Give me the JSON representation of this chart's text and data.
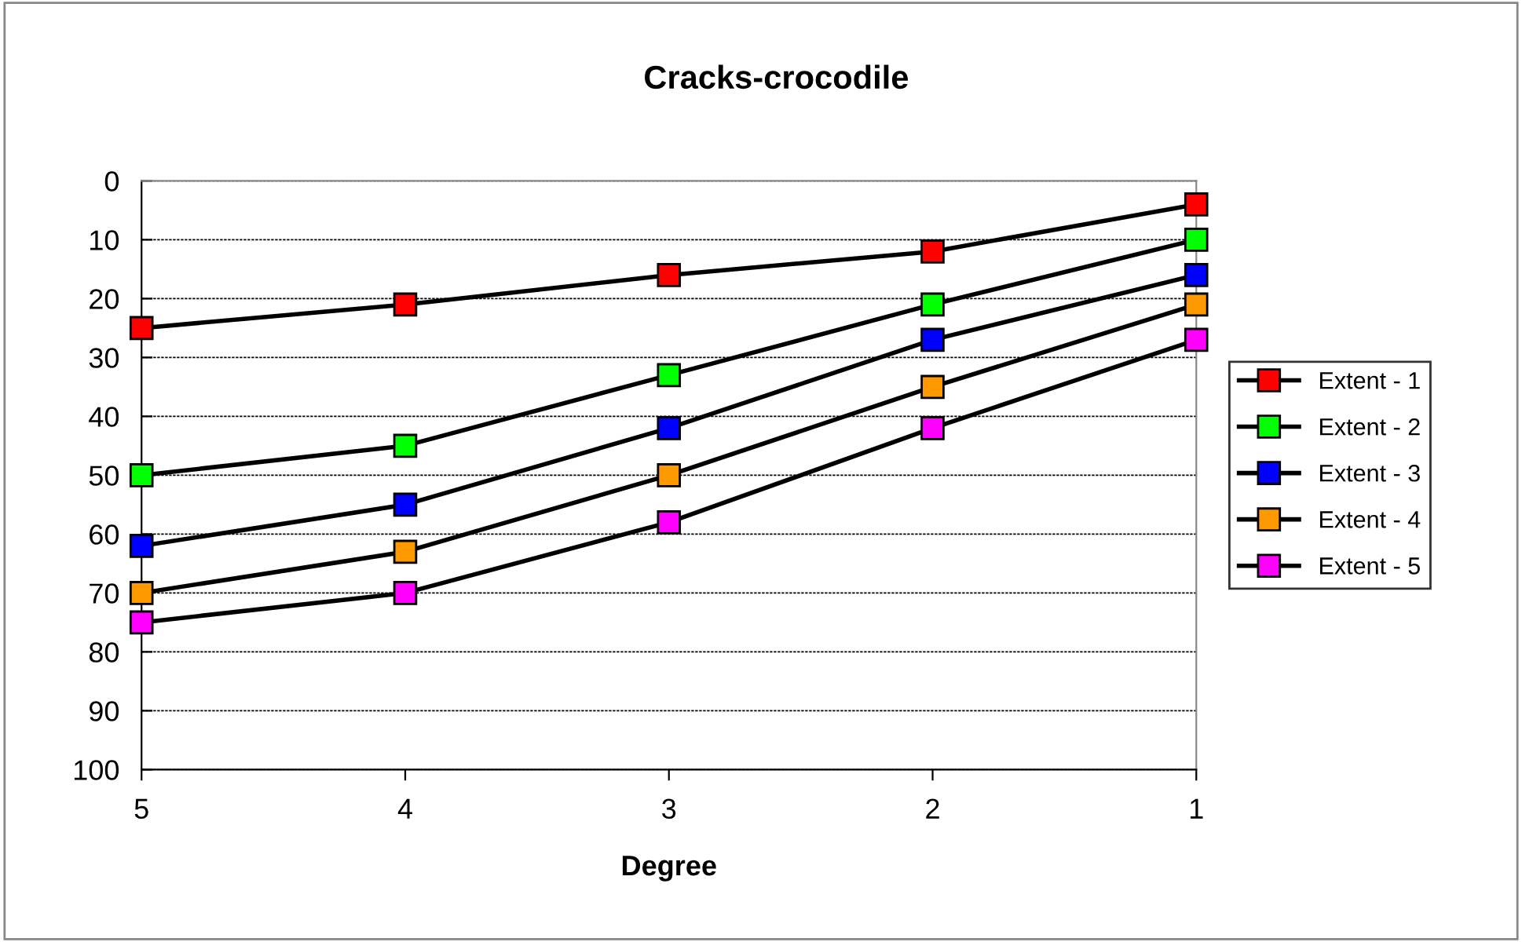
{
  "chart_data": {
    "type": "line",
    "title": "Cracks-crocodile",
    "xlabel": "Degree",
    "categories": [
      "5",
      "4",
      "3",
      "2",
      "1"
    ],
    "series": [
      {
        "name": "Extent - 1",
        "color": "#ff0000",
        "values": [
          25,
          21,
          16,
          12,
          4
        ]
      },
      {
        "name": "Extent - 2",
        "color": "#00ff00",
        "values": [
          50,
          45,
          33,
          21,
          10
        ]
      },
      {
        "name": "Extent - 3",
        "color": "#0000ff",
        "values": [
          62,
          55,
          42,
          27,
          16
        ]
      },
      {
        "name": "Extent - 4",
        "color": "#ff9900",
        "values": [
          70,
          63,
          50,
          35,
          21
        ]
      },
      {
        "name": "Extent - 5",
        "color": "#ff00ff",
        "values": [
          75,
          70,
          58,
          42,
          27
        ]
      }
    ],
    "ylim": [
      100,
      0
    ],
    "yticks": [
      0,
      10,
      20,
      30,
      40,
      50,
      60,
      70,
      80,
      90,
      100
    ],
    "grid": "y",
    "legend": "right",
    "marker": "square",
    "line_style": "solid"
  }
}
